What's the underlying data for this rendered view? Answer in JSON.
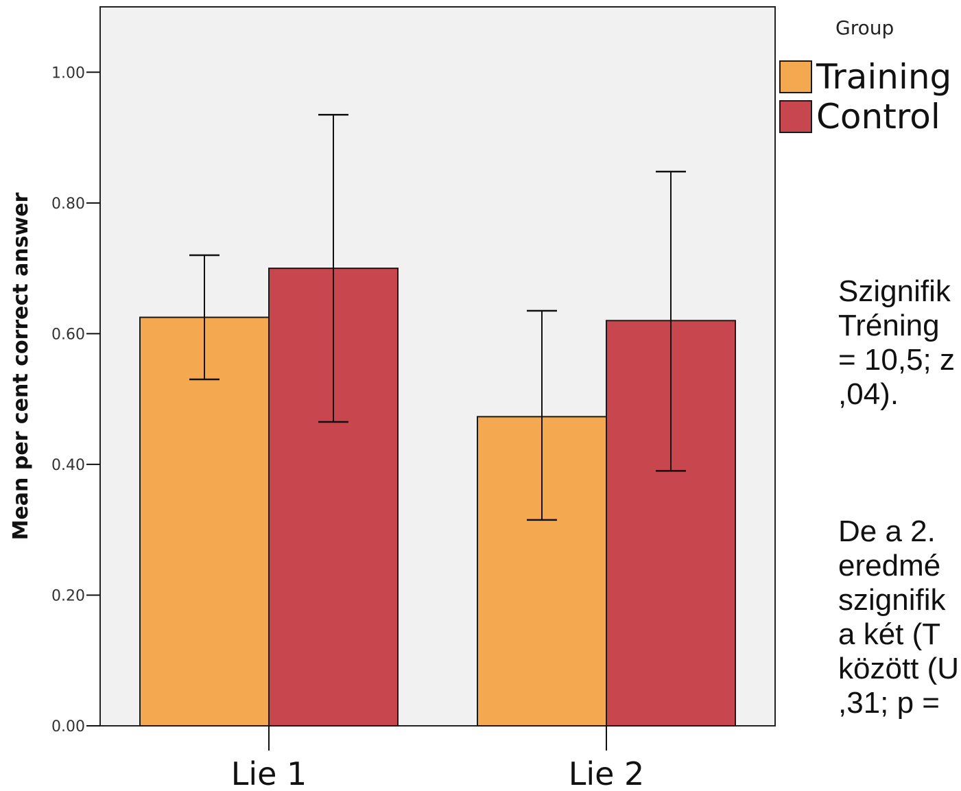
{
  "chart_data": {
    "type": "bar",
    "categories": [
      "Lie 1",
      "Lie 2"
    ],
    "series": [
      {
        "name": "Training",
        "color": "#f4a950",
        "values": [
          0.625,
          0.473
        ],
        "error_low": [
          0.53,
          0.315
        ],
        "error_high": [
          0.72,
          0.635
        ]
      },
      {
        "name": "Control",
        "color": "#c8464e",
        "values": [
          0.7,
          0.62
        ],
        "error_low": [
          0.465,
          0.39
        ],
        "error_high": [
          0.935,
          0.848
        ]
      }
    ],
    "ylabel": "Mean per cent correct answer",
    "ylim": [
      0,
      1.1
    ],
    "yticks": [
      "0.00",
      "0.20",
      "0.40",
      "0.60",
      "0.80",
      "1.00"
    ],
    "ytick_values": [
      0,
      0.2,
      0.4,
      0.6,
      0.8,
      1.0
    ],
    "legend_title": "Group",
    "legend_position": "top-right",
    "background_color": "#f1f1f1",
    "grid": false
  },
  "side_text": {
    "paragraph1": "Szignifik\nTréning\n= 10,5; z\n,04).",
    "paragraph2": "De a 2.\neredmé\nszignifik\na két (T\nközött (U\n,31; p ="
  }
}
